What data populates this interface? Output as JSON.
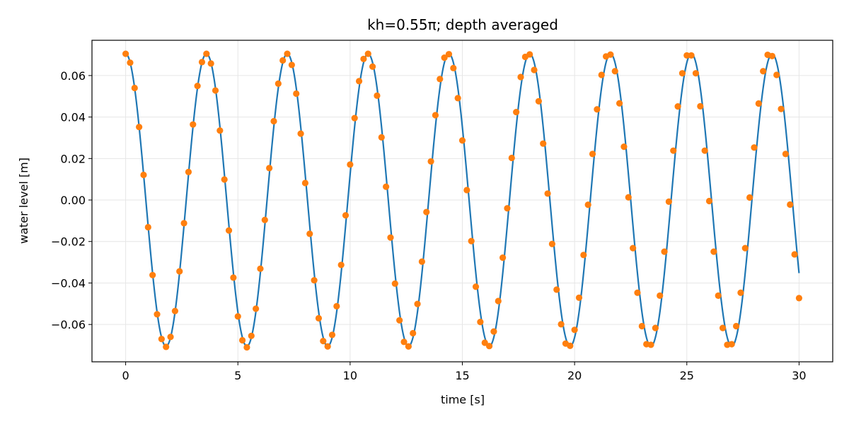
{
  "chart_data": {
    "type": "line",
    "title": "kh=0.55π; depth averaged",
    "xlabel": "time [s]",
    "ylabel": "water level [m]",
    "xlim": [
      -1.5,
      31.5
    ],
    "ylim": [
      -0.078,
      0.077
    ],
    "xticks": [
      0,
      5,
      10,
      15,
      20,
      25,
      30
    ],
    "yticks": [
      -0.06,
      -0.04,
      -0.02,
      0.0,
      0.02,
      0.04,
      0.06
    ],
    "ytick_labels": [
      "−0.06",
      "−0.04",
      "−0.02",
      "0.00",
      "0.02",
      "0.04",
      "0.06"
    ],
    "grid": true,
    "series": [
      {
        "kind": "line",
        "color": "#1f77b4",
        "function": {
          "amplitude": 0.0705,
          "period": 3.6,
          "phase": 0,
          "t_start": 0,
          "t_end": 30
        }
      },
      {
        "kind": "scatter",
        "color": "#ff7f0e",
        "x": [
          0.0,
          0.2,
          0.4,
          0.6,
          0.8,
          1.0,
          1.2,
          1.4,
          1.6,
          1.8,
          2.0,
          2.2,
          2.4,
          2.6,
          2.8,
          3.0,
          3.2,
          3.4,
          3.6,
          3.8,
          4.0,
          4.2,
          4.4,
          4.6,
          4.8,
          5.0,
          5.2,
          5.4,
          5.6,
          5.8,
          6.0,
          6.2,
          6.4,
          6.6,
          6.8,
          7.0,
          7.2,
          7.4,
          7.6,
          7.8,
          8.0,
          8.2,
          8.4,
          8.6,
          8.8,
          9.0,
          9.2,
          9.4,
          9.6,
          9.8,
          10.0,
          10.2,
          10.4,
          10.6,
          10.8,
          11.0,
          11.2,
          11.4,
          11.6,
          11.8,
          12.0,
          12.2,
          12.4,
          12.6,
          12.8,
          13.0,
          13.2,
          13.4,
          13.6,
          13.8,
          14.0,
          14.2,
          14.4,
          14.6,
          14.8,
          15.0,
          15.2,
          15.4,
          15.6,
          15.8,
          16.0,
          16.2,
          16.4,
          16.6,
          16.8,
          17.0,
          17.2,
          17.4,
          17.6,
          17.8,
          18.0,
          18.2,
          18.4,
          18.6,
          18.8,
          19.0,
          19.2,
          19.4,
          19.6,
          19.8,
          20.0,
          20.2,
          20.4,
          20.6,
          20.8,
          21.0,
          21.2,
          21.4,
          21.6,
          21.8,
          22.0,
          22.2,
          22.4,
          22.6,
          22.8,
          23.0,
          23.2,
          23.4,
          23.6,
          23.8,
          24.0,
          24.2,
          24.4,
          24.6,
          24.8,
          25.0,
          25.2,
          25.4,
          25.6,
          25.8,
          26.0,
          26.2,
          26.4,
          26.6,
          26.8,
          27.0,
          27.2,
          27.4,
          27.6,
          27.8,
          28.0,
          28.2,
          28.4,
          28.6,
          28.8,
          29.0,
          29.2,
          29.4,
          29.6,
          29.8,
          30.0
        ],
        "y": [
          0.0705,
          0.0662,
          0.054,
          0.0352,
          0.0121,
          -0.0131,
          -0.0362,
          -0.0551,
          -0.067,
          -0.0708,
          -0.066,
          -0.0535,
          -0.0344,
          -0.0112,
          0.0135,
          0.0364,
          0.055,
          0.0665,
          0.0705,
          0.0658,
          0.0528,
          0.0335,
          0.0099,
          -0.0147,
          -0.0374,
          -0.0561,
          -0.0676,
          -0.071,
          -0.0655,
          -0.0524,
          -0.0331,
          -0.0096,
          0.0154,
          0.038,
          0.0561,
          0.0673,
          0.0705,
          0.0651,
          0.0513,
          0.032,
          0.0082,
          -0.0163,
          -0.0387,
          -0.057,
          -0.068,
          -0.0706,
          -0.065,
          -0.0512,
          -0.0313,
          -0.0074,
          0.0171,
          0.0395,
          0.0573,
          0.068,
          0.0705,
          0.0643,
          0.0503,
          0.0302,
          0.0064,
          -0.0181,
          -0.0403,
          -0.058,
          -0.0684,
          -0.0706,
          -0.0642,
          -0.0501,
          -0.0297,
          -0.0058,
          0.0186,
          0.0409,
          0.0583,
          0.0686,
          0.0703,
          0.0636,
          0.0491,
          0.0287,
          0.0048,
          -0.0198,
          -0.0418,
          -0.0588,
          -0.0688,
          -0.0704,
          -0.0634,
          -0.0487,
          -0.0278,
          -0.004,
          0.0203,
          0.0424,
          0.0593,
          0.069,
          0.0702,
          0.0627,
          0.0476,
          0.0272,
          0.0031,
          -0.0212,
          -0.0432,
          -0.0599,
          -0.0692,
          -0.0703,
          -0.0626,
          -0.0471,
          -0.0265,
          -0.0023,
          0.0222,
          0.0437,
          0.0603,
          0.0692,
          0.0701,
          0.0621,
          0.0466,
          0.0257,
          0.0013,
          -0.0232,
          -0.0447,
          -0.0608,
          -0.0695,
          -0.0698,
          -0.0617,
          -0.0461,
          -0.0249,
          -0.0008,
          0.0238,
          0.0451,
          0.0611,
          0.0697,
          0.0697,
          0.0611,
          0.0452,
          0.0238,
          -0.0005,
          -0.0249,
          -0.0461,
          -0.0617,
          -0.0698,
          -0.0695,
          -0.0608,
          -0.0447,
          -0.0232,
          0.0012,
          0.0253,
          0.0465,
          0.0621,
          0.07,
          0.0694,
          0.0603,
          0.0439,
          0.0222,
          -0.0022,
          -0.0262,
          -0.0473
        ]
      }
    ]
  }
}
